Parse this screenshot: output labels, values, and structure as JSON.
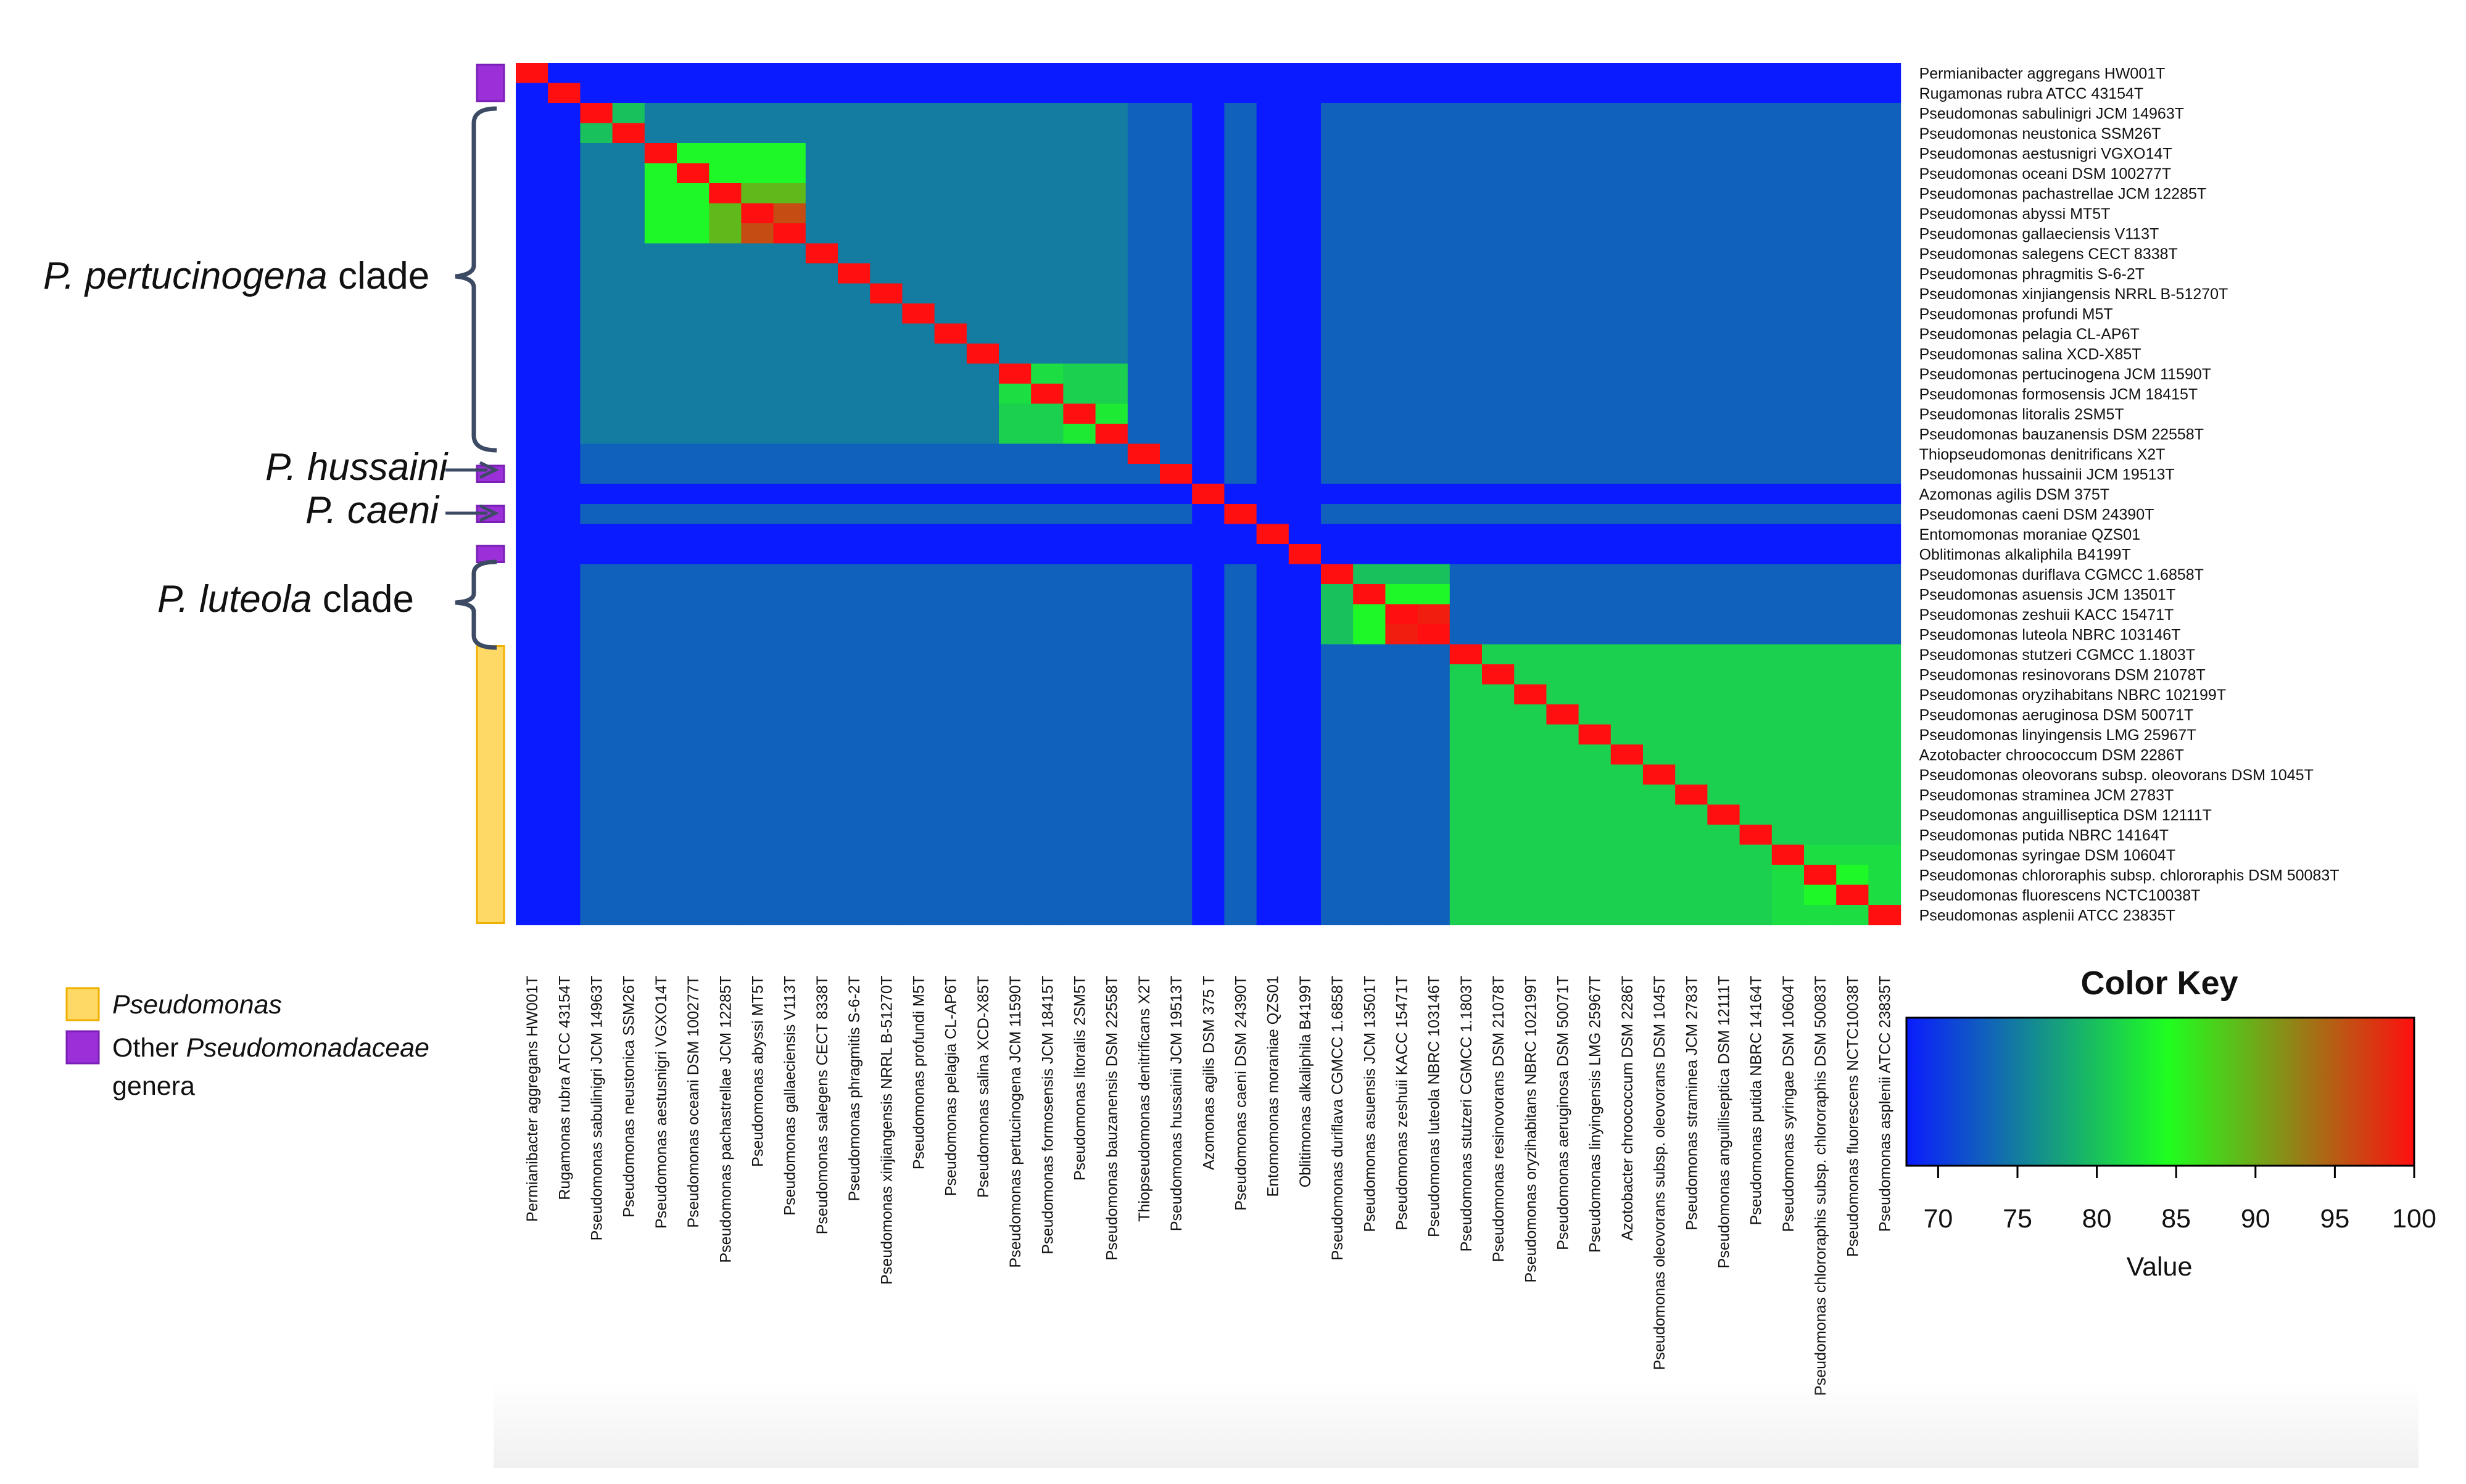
{
  "chart_data": {
    "type": "heatmap",
    "title": "",
    "labels": [
      "Permianibacter aggregans HW001T",
      "Rugamonas rubra ATCC 43154T",
      "Pseudomonas sabulinigri JCM 14963T",
      "Pseudomonas neustonica SSM26T",
      "Pseudomonas aestusnigri VGXO14T",
      "Pseudomonas oceani DSM 100277T",
      "Pseudomonas pachastrellae JCM 12285T",
      "Pseudomonas abyssi MT5T",
      "Pseudomonas gallaeciensis V113T",
      "Pseudomonas salegens CECT 8338T",
      "Pseudomonas phragmitis S-6-2T",
      "Pseudomonas xinjiangensis NRRL B-51270T",
      "Pseudomonas profundi M5T",
      "Pseudomonas pelagia CL-AP6T",
      "Pseudomonas salina XCD-X85T",
      "Pseudomonas pertucinogena JCM 11590T",
      "Pseudomonas formosensis JCM 18415T",
      "Pseudomonas litoralis 2SM5T",
      "Pseudomonas bauzanensis DSM 22558T",
      "Thiopseudomonas denitrificans X2T",
      "Pseudomonas hussainii JCM 19513T",
      "Azomonas agilis DSM 375T",
      "Pseudomonas caeni DSM 24390T",
      "Entomomonas moraniae QZS01",
      "Oblitimonas alkaliphila B4199T",
      "Pseudomonas duriflava CGMCC 1.6858T",
      "Pseudomonas asuensis JCM 13501T",
      "Pseudomonas zeshuii KACC 15471T",
      "Pseudomonas luteola NBRC 103146T",
      "Pseudomonas stutzeri CGMCC 1.1803T",
      "Pseudomonas resinovorans DSM 21078T",
      "Pseudomonas oryzihabitans NBRC 102199T",
      "Pseudomonas aeruginosa DSM 50071T",
      "Pseudomonas linyingensis LMG 25967T",
      "Azotobacter chroococcum DSM 2286T",
      "Pseudomonas oleovorans subsp. oleovorans DSM 1045T",
      "Pseudomonas straminea JCM 2783T",
      "Pseudomonas anguilliseptica DSM 12111T",
      "Pseudomonas putida NBRC 14164T",
      "Pseudomonas syringae DSM 10604T",
      "Pseudomonas chlororaphis subsp. chlororaphis DSM 50083T",
      "Pseudomonas fluorescens NCTC10038T",
      "Pseudomonas asplenii ATCC 23835T"
    ],
    "column_labels": [
      "Permianibacter aggregans HW001T",
      "Rugamonas rubra ATCC 43154T",
      "Pseudomonas sabulinigri JCM 14963T",
      "Pseudomonas neustonica SSM26T",
      "Pseudomonas aestusnigri VGXO14T",
      "Pseudomonas oceani DSM 100277T",
      "Pseudomonas pachastrellae JCM 12285T",
      "Pseudomonas abyssi MT5T",
      "Pseudomonas gallaeciensis V113T",
      "Pseudomonas salegens CECT 8338T",
      "Pseudomonas phragmitis S-6-2T",
      "Pseudomonas xinjiangensis NRRL B-51270T",
      "Pseudomonas profundi M5T",
      "Pseudomonas pelagia CL-AP6T",
      "Pseudomonas salina XCD-X85T",
      "Pseudomonas pertucinogena JCM 11590T",
      "Pseudomonas formosensis JCM 18415T",
      "Pseudomonas litoralis 2SM5T",
      "Pseudomonas bauzanensis DSM 22558T",
      "Thiopseudomonas denitrificans X2T",
      "Pseudomonas hussainii JCM 19513T",
      "Azomonas agilis DSM 375 T",
      "Pseudomonas caeni DSM 24390T",
      "Entomomonas moraniae QZS01",
      "Oblitimonas alkaliphila B4199T",
      "Pseudomonas duriflava CGMCC 1.6858T",
      "Pseudomonas asuensis JCM 13501T",
      "Pseudomonas zeshuii KACC 15471T",
      "Pseudomonas luteola NBRC 103146T",
      "Pseudomonas stutzeri CGMCC 1.1803T",
      "Pseudomonas resinovorans DSM 21078T",
      "Pseudomonas oryzihabitans NBRC 102199T",
      "Pseudomonas aeruginosa DSM 50071T",
      "Pseudomonas linyingensis LMG 25967T",
      "Azotobacter chroococcum DSM 2286T",
      "Pseudomonas oleovorans subsp. oleovorans DSM 1045T",
      "Pseudomonas straminea JCM 2783T",
      "Pseudomonas anguilliseptica DSM 12111T",
      "Pseudomonas putida NBRC 14164T",
      "Pseudomonas syringae DSM 10604T",
      "Pseudomonas chlororaphis subsp. chlororaphis DSM 50083T",
      "Pseudomonas fluorescens NCTC10038T",
      "Pseudomonas asplenii ATCC 23835T"
    ],
    "value_range": [
      68,
      100
    ],
    "diagonal_value": 100,
    "background_values": {
      "outgroup": 68,
      "within_pertucinogena": 75,
      "within_main_pseudomonas": 81,
      "between_groups": 73
    },
    "pairwise_overrides": [
      [
        4,
        5,
        84
      ],
      [
        4,
        6,
        84
      ],
      [
        4,
        7,
        84
      ],
      [
        4,
        8,
        84
      ],
      [
        5,
        6,
        84
      ],
      [
        5,
        7,
        84
      ],
      [
        5,
        8,
        84
      ],
      [
        6,
        7,
        89
      ],
      [
        6,
        8,
        89
      ],
      [
        7,
        8,
        96
      ],
      [
        2,
        3,
        80
      ],
      [
        15,
        16,
        82
      ],
      [
        15,
        17,
        81
      ],
      [
        15,
        18,
        81
      ],
      [
        16,
        17,
        81
      ],
      [
        16,
        18,
        81
      ],
      [
        17,
        18,
        83
      ],
      [
        25,
        26,
        80
      ],
      [
        25,
        27,
        80
      ],
      [
        25,
        28,
        80
      ],
      [
        26,
        27,
        84
      ],
      [
        26,
        28,
        84
      ],
      [
        27,
        28,
        99
      ],
      [
        39,
        40,
        82
      ],
      [
        39,
        41,
        82
      ],
      [
        39,
        42,
        82
      ],
      [
        40,
        41,
        84
      ],
      [
        40,
        42,
        82
      ],
      [
        41,
        42,
        82
      ]
    ],
    "row_groups": [
      {
        "category": "other",
        "from": 0,
        "to": 1
      },
      {
        "category": "other",
        "from": 20,
        "to": 20
      },
      {
        "category": "other",
        "from": 22,
        "to": 22
      },
      {
        "category": "other",
        "from": 24,
        "to": 24
      },
      {
        "category": "pseudomonas",
        "from": 29,
        "to": 42
      }
    ],
    "colorscale": {
      "stops": [
        68,
        84.5,
        100
      ],
      "colors": [
        "#0a1cff",
        "#1fff1f",
        "#ff0f0f"
      ]
    },
    "color_key": {
      "title": "Color Key",
      "xlabel": "Value",
      "ticks": [
        "70",
        "75",
        "80",
        "85",
        "90",
        "95",
        "100"
      ],
      "tick_values": [
        70,
        75,
        80,
        85,
        90,
        95,
        100
      ]
    },
    "annotations": {
      "pertucinogena": {
        "italic": "P. pertucinogena",
        "text": " clade",
        "rows": [
          2,
          18
        ]
      },
      "hussaini": {
        "italic": "P. hussaini",
        "row": 20
      },
      "caeni": {
        "italic": "P. caeni",
        "row": 22
      },
      "luteola": {
        "italic": "P. luteola",
        "text": " clade",
        "rows": [
          25,
          28
        ]
      }
    },
    "legend": {
      "pseudomonas": {
        "label": "Pseudomonas",
        "color": "#ffd966",
        "border": "#f0b000"
      },
      "other": {
        "label_prefix": "Other ",
        "label_italic": "Pseudomonadaceae",
        "label_line2": "genera",
        "color": "#9b30d9",
        "border": "#7a1fb5"
      }
    }
  }
}
